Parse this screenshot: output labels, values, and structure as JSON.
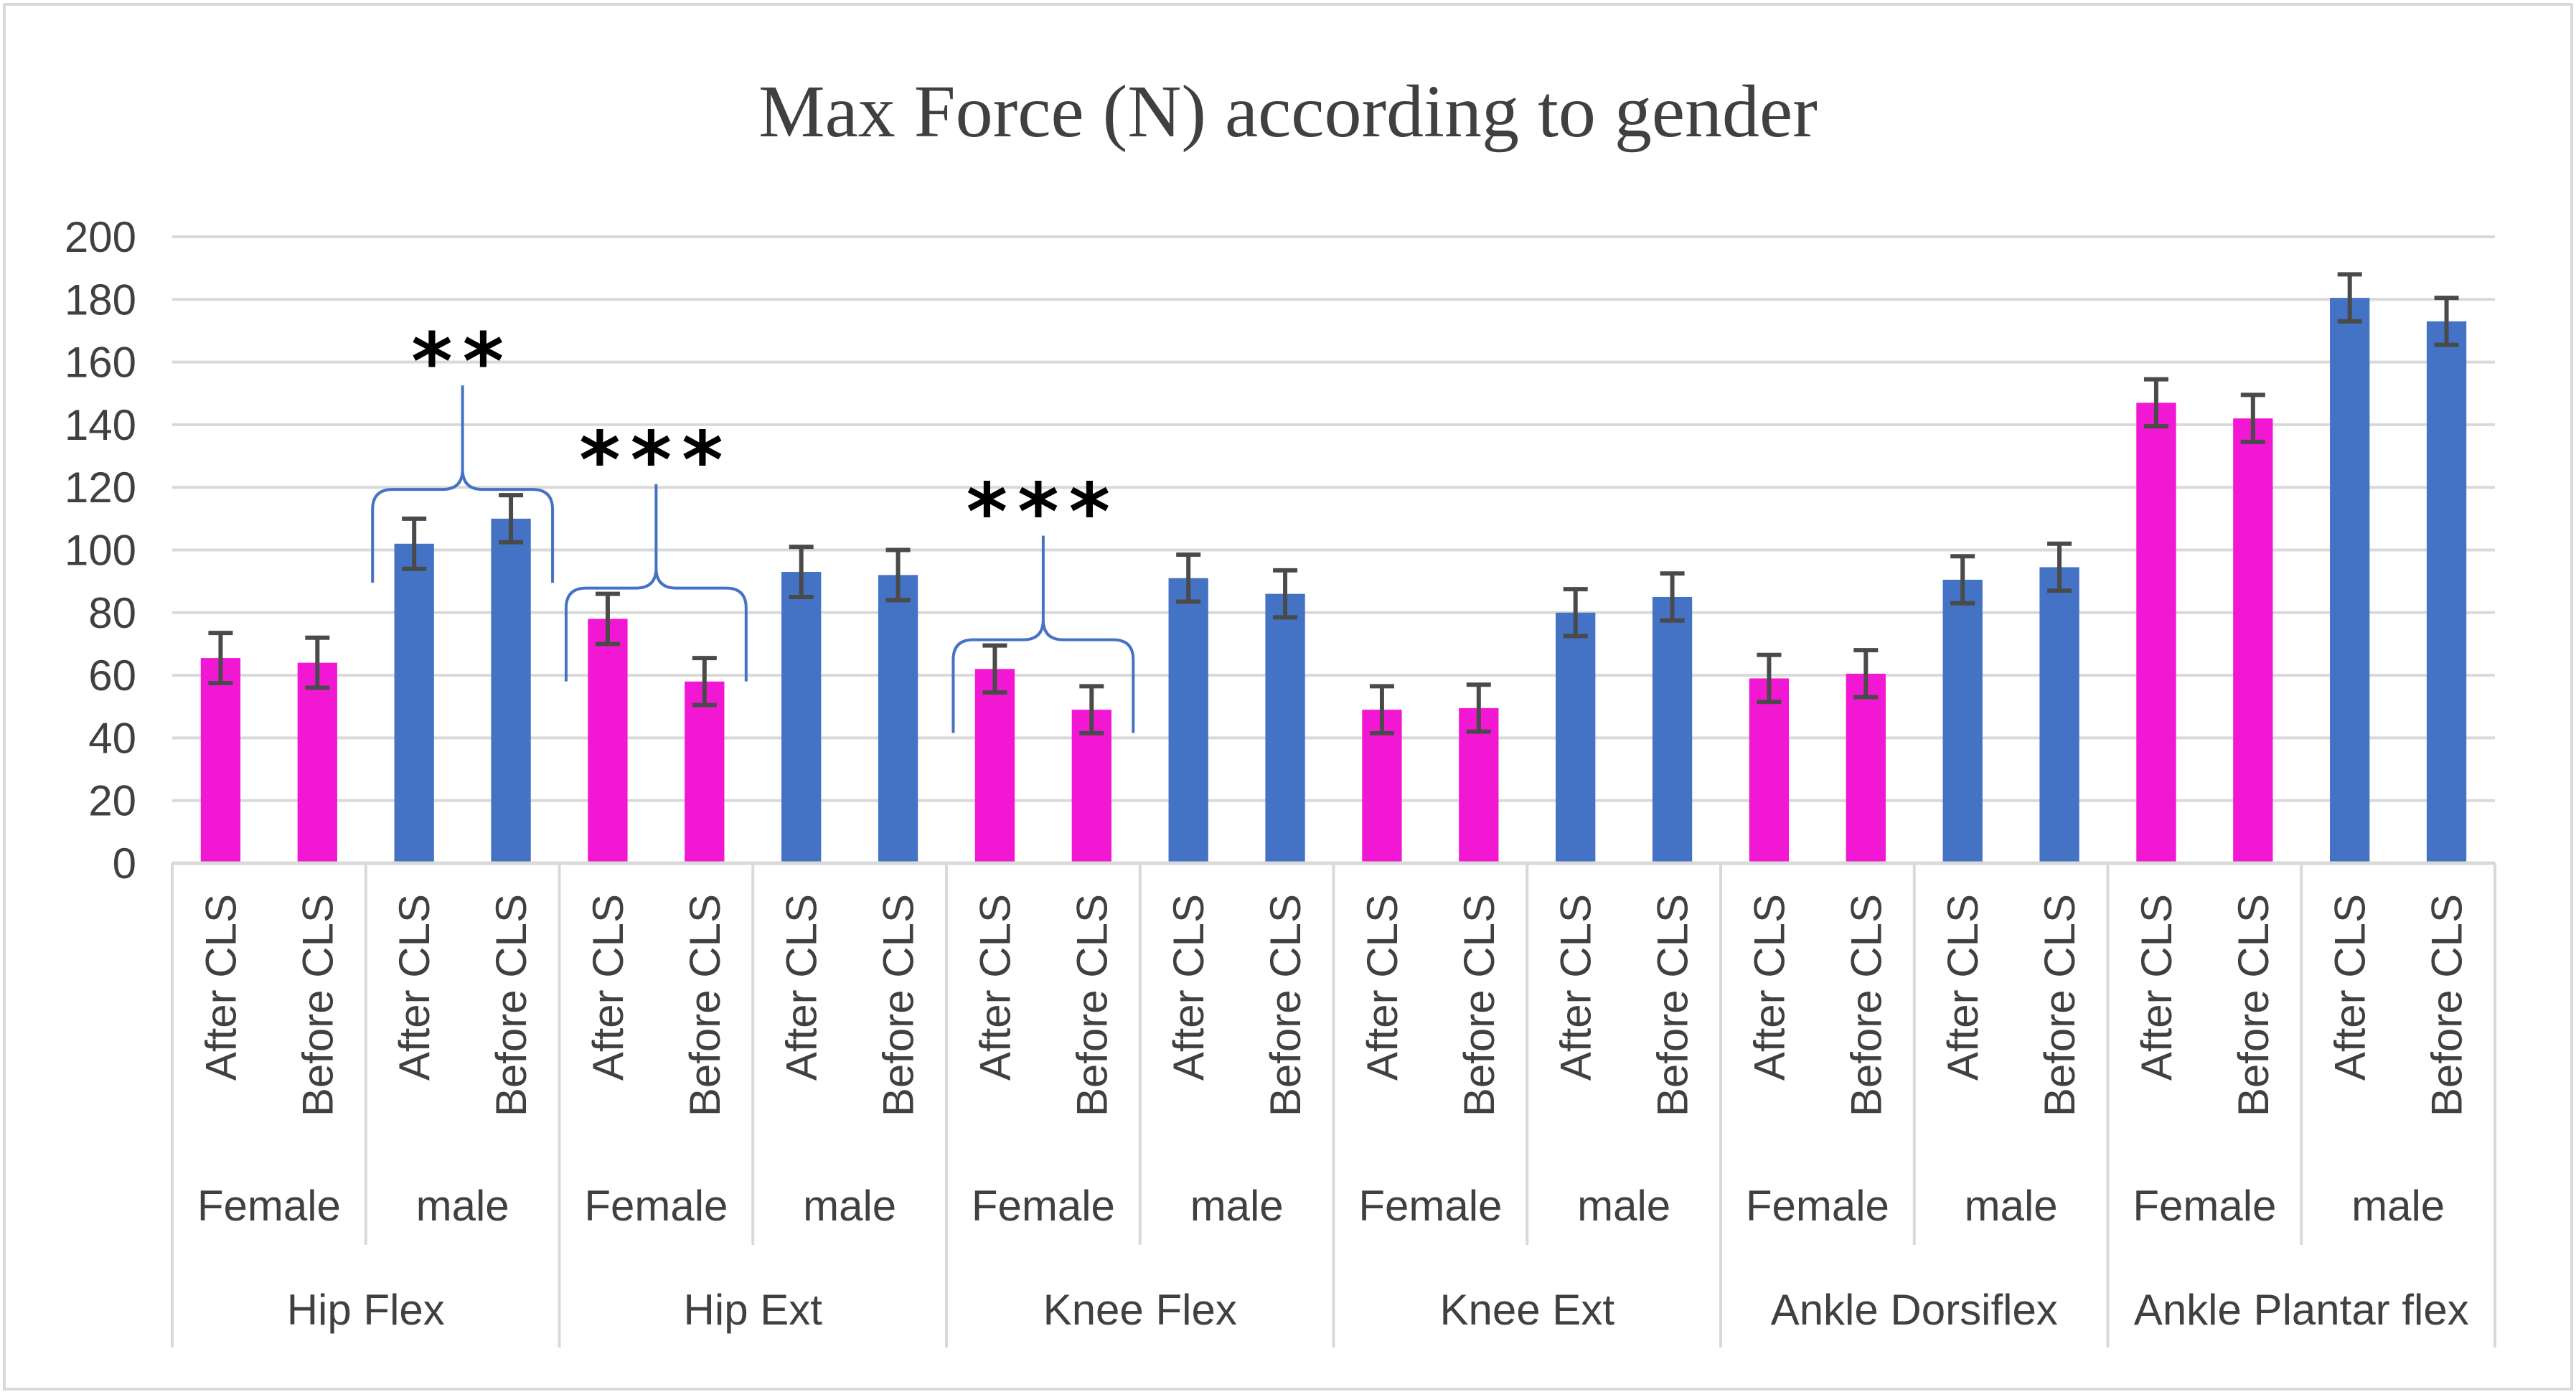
{
  "colors": {
    "female": "#f218d3",
    "male": "#4472c4",
    "error_bar": "#4a4a4a",
    "grid": "#d9d9d9",
    "axis_text": "#404040",
    "bracket": "#4472c4",
    "significance": "#000000"
  },
  "chart_data": {
    "type": "bar",
    "title": "Max Force (N) according to gender",
    "xlabel": "",
    "ylabel": "",
    "ylim": [
      0,
      200
    ],
    "y_ticks": [
      "0",
      "20",
      "40",
      "60",
      "80",
      "100",
      "120",
      "140",
      "160",
      "180",
      "200"
    ],
    "grid": true,
    "legend": "none",
    "groups": [
      {
        "label": "Hip Flex",
        "subgroups": [
          {
            "gender": "Female",
            "bars": [
              {
                "label": "After CLS",
                "value": 65.5,
                "error": 8
              },
              {
                "label": "Before CLS",
                "value": 64,
                "error": 8
              }
            ]
          },
          {
            "gender": "male",
            "bars": [
              {
                "label": "After CLS",
                "value": 102,
                "error": 8
              },
              {
                "label": "Before CLS",
                "value": 110,
                "error": 7.5
              }
            ]
          }
        ]
      },
      {
        "label": "Hip Ext",
        "subgroups": [
          {
            "gender": "Female",
            "bars": [
              {
                "label": "After CLS",
                "value": 78,
                "error": 8
              },
              {
                "label": "Before CLS",
                "value": 58,
                "error": 7.5
              }
            ]
          },
          {
            "gender": "male",
            "bars": [
              {
                "label": "After CLS",
                "value": 93,
                "error": 8
              },
              {
                "label": "Before CLS",
                "value": 92,
                "error": 8
              }
            ]
          }
        ]
      },
      {
        "label": "Knee Flex",
        "subgroups": [
          {
            "gender": "Female",
            "bars": [
              {
                "label": "After CLS",
                "value": 62,
                "error": 7.5
              },
              {
                "label": "Before CLS",
                "value": 49,
                "error": 7.5
              }
            ]
          },
          {
            "gender": "male",
            "bars": [
              {
                "label": "After CLS",
                "value": 91,
                "error": 7.5
              },
              {
                "label": "Before CLS",
                "value": 86,
                "error": 7.5
              }
            ]
          }
        ]
      },
      {
        "label": "Knee Ext",
        "subgroups": [
          {
            "gender": "Female",
            "bars": [
              {
                "label": "After CLS",
                "value": 49,
                "error": 7.5
              },
              {
                "label": "Before CLS",
                "value": 49.5,
                "error": 7.5
              }
            ]
          },
          {
            "gender": "male",
            "bars": [
              {
                "label": "After CLS",
                "value": 80,
                "error": 7.5
              },
              {
                "label": "Before CLS",
                "value": 85,
                "error": 7.5
              }
            ]
          }
        ]
      },
      {
        "label": "Ankle Dorsiflex",
        "subgroups": [
          {
            "gender": "Female",
            "bars": [
              {
                "label": "After CLS",
                "value": 59,
                "error": 7.5
              },
              {
                "label": "Before CLS",
                "value": 60.5,
                "error": 7.5
              }
            ]
          },
          {
            "gender": "male",
            "bars": [
              {
                "label": "After CLS",
                "value": 90.5,
                "error": 7.5
              },
              {
                "label": "Before CLS",
                "value": 94.5,
                "error": 7.5
              }
            ]
          }
        ]
      },
      {
        "label": "Ankle Plantar flex",
        "subgroups": [
          {
            "gender": "Female",
            "bars": [
              {
                "label": "After CLS",
                "value": 147,
                "error": 7.5
              },
              {
                "label": "Before CLS",
                "value": 142,
                "error": 7.5
              }
            ]
          },
          {
            "gender": "male",
            "bars": [
              {
                "label": "After CLS",
                "value": 180.5,
                "error": 7.5
              },
              {
                "label": "Before CLS",
                "value": 173,
                "error": 7.5
              }
            ]
          }
        ]
      }
    ],
    "annotations": [
      {
        "text": "**",
        "group": 0,
        "subgroup": 1
      },
      {
        "text": "***",
        "group": 1,
        "subgroup": 0
      },
      {
        "text": "***",
        "group": 2,
        "subgroup": 0
      }
    ]
  }
}
